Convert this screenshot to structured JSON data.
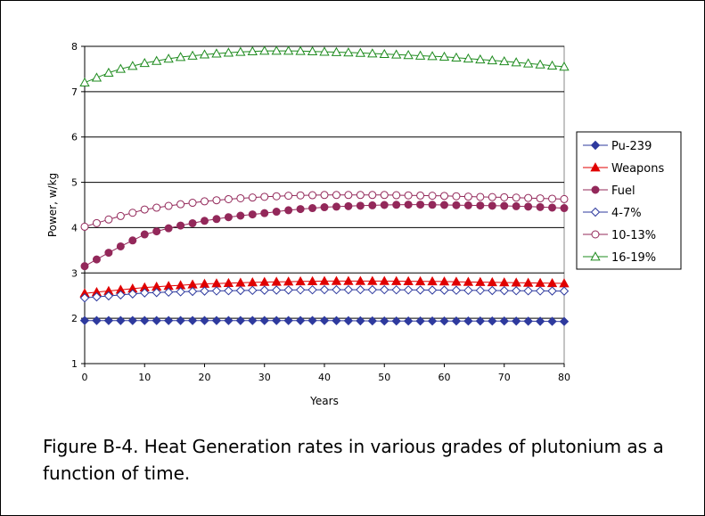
{
  "caption": "Figure B-4. Heat Generation rates in various grades of plutonium as a function of time.",
  "chart_data": {
    "type": "line",
    "xlabel": "Years",
    "ylabel": "Power, w/kg",
    "xlim": [
      0,
      80
    ],
    "ylim": [
      1,
      8
    ],
    "xticks": [
      0,
      10,
      20,
      30,
      40,
      50,
      60,
      70,
      80
    ],
    "yticks": [
      1,
      2,
      3,
      4,
      5,
      6,
      7,
      8
    ],
    "grid": "horizontal",
    "legend_position": "right",
    "series": [
      {
        "name": "Pu-239",
        "color": "#2E3A9E",
        "marker": "diamond-filled",
        "x": [
          0,
          10,
          20,
          30,
          40,
          50,
          60,
          70,
          80
        ],
        "y": [
          1.95,
          1.95,
          1.95,
          1.95,
          1.95,
          1.94,
          1.94,
          1.94,
          1.93
        ]
      },
      {
        "name": "Weapons",
        "color": "#E00000",
        "marker": "triangle-filled",
        "x": [
          0,
          10,
          20,
          30,
          40,
          50,
          60,
          70,
          80
        ],
        "y": [
          2.55,
          2.68,
          2.76,
          2.8,
          2.82,
          2.82,
          2.81,
          2.79,
          2.77
        ]
      },
      {
        "name": "Fuel",
        "color": "#93285A",
        "marker": "circle-filled",
        "x": [
          0,
          5,
          10,
          15,
          20,
          25,
          30,
          35,
          40,
          45,
          50,
          55,
          60,
          65,
          70,
          75,
          80
        ],
        "y": [
          3.15,
          3.52,
          3.85,
          4.02,
          4.15,
          4.25,
          4.32,
          4.4,
          4.45,
          4.48,
          4.5,
          4.51,
          4.5,
          4.49,
          4.48,
          4.46,
          4.43
        ]
      },
      {
        "name": "4-7%",
        "color": "#2E3A9E",
        "marker": "diamond-open",
        "x": [
          0,
          10,
          20,
          30,
          40,
          50,
          60,
          70,
          80
        ],
        "y": [
          2.45,
          2.56,
          2.6,
          2.62,
          2.63,
          2.63,
          2.62,
          2.61,
          2.6
        ]
      },
      {
        "name": "10-13%",
        "color": "#93285A",
        "marker": "circle-open",
        "x": [
          0,
          5,
          10,
          15,
          20,
          25,
          30,
          35,
          40,
          45,
          50,
          55,
          60,
          65,
          70,
          75,
          80
        ],
        "y": [
          4.02,
          4.22,
          4.4,
          4.5,
          4.58,
          4.64,
          4.68,
          4.71,
          4.72,
          4.72,
          4.72,
          4.71,
          4.7,
          4.68,
          4.67,
          4.65,
          4.63
        ]
      },
      {
        "name": "16-19%",
        "color": "#1E8B1E",
        "marker": "triangle-open",
        "x": [
          0,
          5,
          10,
          15,
          20,
          25,
          30,
          35,
          40,
          45,
          50,
          55,
          60,
          65,
          70,
          75,
          80
        ],
        "y": [
          7.2,
          7.47,
          7.63,
          7.75,
          7.82,
          7.87,
          7.9,
          7.9,
          7.88,
          7.86,
          7.83,
          7.8,
          7.77,
          7.72,
          7.67,
          7.61,
          7.55
        ]
      }
    ]
  }
}
